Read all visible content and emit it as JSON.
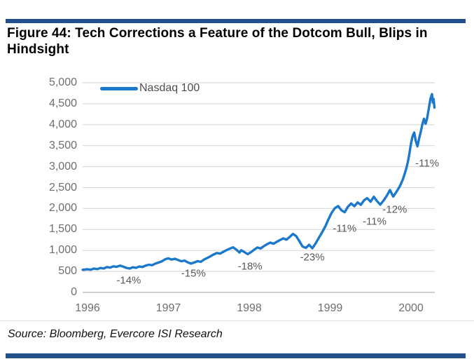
{
  "header": {
    "title": "Figure 44: Tech Corrections a Feature of the Dotcom Bull, Blips in Hindsight"
  },
  "footer": {
    "source": "Source: Bloomberg, Evercore ISI Research"
  },
  "colors": {
    "rule_bar": "#21508d",
    "line": "#1b78cb",
    "gridline": "#dadada",
    "zero_axis": "#b3b3b3",
    "axis_text": "#6e6e6e",
    "annotation_text": "#595959"
  },
  "chart": {
    "legend": {
      "label": "Nasdaq 100"
    },
    "y_ticks": [
      {
        "value": 0,
        "label": "0"
      },
      {
        "value": 500,
        "label": "500"
      },
      {
        "value": 1000,
        "label": "1,000"
      },
      {
        "value": 1500,
        "label": "1,500"
      },
      {
        "value": 2000,
        "label": "2,000"
      },
      {
        "value": 2500,
        "label": "2,500"
      },
      {
        "value": 3000,
        "label": "3,000"
      },
      {
        "value": 3500,
        "label": "3,500"
      },
      {
        "value": 4000,
        "label": "4,000"
      },
      {
        "value": 4500,
        "label": "4,500"
      },
      {
        "value": 5000,
        "label": "5,000"
      }
    ],
    "x_ticks": [
      {
        "year": 1996,
        "label": "1996"
      },
      {
        "year": 1997,
        "label": "1997"
      },
      {
        "year": 1998,
        "label": "1998"
      },
      {
        "year": 1999,
        "label": "1999"
      },
      {
        "year": 2000,
        "label": "2000"
      }
    ]
  },
  "chart_data": {
    "type": "line",
    "title": "Figure 44: Tech Corrections a Feature of the Dotcom Bull, Blips in Hindsight",
    "xlabel": "",
    "ylabel": "",
    "x_range": [
      1995.94,
      2000.3
    ],
    "ylim": [
      0,
      5000
    ],
    "grid": true,
    "legend_position": "top-left",
    "series": [
      {
        "name": "Nasdaq 100",
        "color": "#1b78cb",
        "points": [
          [
            1995.94,
            538
          ],
          [
            1996.0,
            552
          ],
          [
            1996.04,
            540
          ],
          [
            1996.08,
            568
          ],
          [
            1996.12,
            556
          ],
          [
            1996.16,
            582
          ],
          [
            1996.2,
            570
          ],
          [
            1996.24,
            605
          ],
          [
            1996.28,
            590
          ],
          [
            1996.32,
            622
          ],
          [
            1996.36,
            608
          ],
          [
            1996.4,
            638
          ],
          [
            1996.44,
            615
          ],
          [
            1996.48,
            585
          ],
          [
            1996.52,
            568
          ],
          [
            1996.56,
            598
          ],
          [
            1996.6,
            585
          ],
          [
            1996.64,
            618
          ],
          [
            1996.68,
            605
          ],
          [
            1996.72,
            640
          ],
          [
            1996.76,
            660
          ],
          [
            1996.8,
            648
          ],
          [
            1996.84,
            688
          ],
          [
            1996.88,
            712
          ],
          [
            1996.92,
            742
          ],
          [
            1996.96,
            790
          ],
          [
            1997.0,
            812
          ],
          [
            1997.04,
            782
          ],
          [
            1997.08,
            802
          ],
          [
            1997.12,
            772
          ],
          [
            1997.16,
            742
          ],
          [
            1997.2,
            760
          ],
          [
            1997.24,
            715
          ],
          [
            1997.28,
            688
          ],
          [
            1997.32,
            712
          ],
          [
            1997.36,
            745
          ],
          [
            1997.4,
            728
          ],
          [
            1997.44,
            782
          ],
          [
            1997.48,
            820
          ],
          [
            1997.52,
            862
          ],
          [
            1997.56,
            905
          ],
          [
            1997.6,
            940
          ],
          [
            1997.64,
            925
          ],
          [
            1997.68,
            968
          ],
          [
            1997.72,
            1010
          ],
          [
            1997.76,
            1042
          ],
          [
            1997.8,
            1075
          ],
          [
            1997.84,
            1020
          ],
          [
            1997.88,
            952
          ],
          [
            1997.9,
            1005
          ],
          [
            1997.94,
            962
          ],
          [
            1997.98,
            912
          ],
          [
            1998.02,
            958
          ],
          [
            1998.06,
            1015
          ],
          [
            1998.1,
            1070
          ],
          [
            1998.14,
            1048
          ],
          [
            1998.18,
            1102
          ],
          [
            1998.22,
            1148
          ],
          [
            1998.26,
            1188
          ],
          [
            1998.3,
            1160
          ],
          [
            1998.34,
            1205
          ],
          [
            1998.38,
            1248
          ],
          [
            1998.42,
            1288
          ],
          [
            1998.46,
            1258
          ],
          [
            1998.5,
            1322
          ],
          [
            1998.54,
            1395
          ],
          [
            1998.58,
            1342
          ],
          [
            1998.62,
            1222
          ],
          [
            1998.66,
            1092
          ],
          [
            1998.7,
            1062
          ],
          [
            1998.74,
            1135
          ],
          [
            1998.78,
            1052
          ],
          [
            1998.82,
            1165
          ],
          [
            1998.86,
            1298
          ],
          [
            1998.9,
            1432
          ],
          [
            1998.94,
            1572
          ],
          [
            1998.98,
            1745
          ],
          [
            1999.02,
            1902
          ],
          [
            1999.06,
            2012
          ],
          [
            1999.1,
            2058
          ],
          [
            1999.14,
            1958
          ],
          [
            1999.18,
            1912
          ],
          [
            1999.22,
            2042
          ],
          [
            1999.26,
            2120
          ],
          [
            1999.3,
            2055
          ],
          [
            1999.34,
            2145
          ],
          [
            1999.38,
            2088
          ],
          [
            1999.42,
            2198
          ],
          [
            1999.46,
            2248
          ],
          [
            1999.5,
            2162
          ],
          [
            1999.54,
            2282
          ],
          [
            1999.58,
            2175
          ],
          [
            1999.62,
            2092
          ],
          [
            1999.66,
            2188
          ],
          [
            1999.7,
            2305
          ],
          [
            1999.74,
            2442
          ],
          [
            1999.78,
            2285
          ],
          [
            1999.82,
            2398
          ],
          [
            1999.86,
            2522
          ],
          [
            1999.9,
            2698
          ],
          [
            1999.94,
            2942
          ],
          [
            1999.96,
            3102
          ],
          [
            1999.98,
            3305
          ],
          [
            2000.0,
            3552
          ],
          [
            2000.02,
            3725
          ],
          [
            2000.04,
            3812
          ],
          [
            2000.06,
            3608
          ],
          [
            2000.08,
            3482
          ],
          [
            2000.1,
            3662
          ],
          [
            2000.12,
            3825
          ],
          [
            2000.14,
            4005
          ],
          [
            2000.16,
            4142
          ],
          [
            2000.18,
            4022
          ],
          [
            2000.2,
            4155
          ],
          [
            2000.22,
            4382
          ],
          [
            2000.24,
            4612
          ],
          [
            2000.26,
            4728
          ],
          [
            2000.27,
            4532
          ],
          [
            2000.28,
            4615
          ],
          [
            2000.29,
            4408
          ]
        ]
      }
    ],
    "annotations": [
      {
        "text": "-14%",
        "year": 1996.51,
        "level": 284
      },
      {
        "text": "-15%",
        "year": 1997.31,
        "level": 451
      },
      {
        "text": "-18%",
        "year": 1998.01,
        "level": 619
      },
      {
        "text": "-23%",
        "year": 1998.78,
        "level": 836
      },
      {
        "text": "-11%",
        "year": 1999.18,
        "level": 1522
      },
      {
        "text": "-11%",
        "year": 1999.55,
        "level": 1689
      },
      {
        "text": "-12%",
        "year": 1999.8,
        "level": 1973
      },
      {
        "text": "-11%",
        "year": 2000.2,
        "level": 3077
      }
    ]
  }
}
